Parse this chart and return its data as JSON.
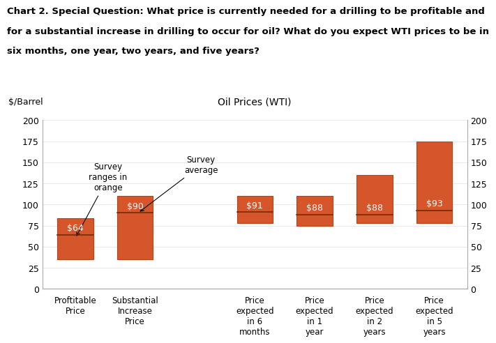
{
  "title_line1": "Chart 2. Special Question: What price is currently needed for a drilling to be profitable and",
  "title_line2": "for a substantial increase in drilling to occur for oil? What do you expect WTI prices to be in",
  "title_line3": "six months, one year, two years, and five years?",
  "center_title": "Oil Prices (WTI)",
  "ylabel_left": "$/Barrel",
  "ylim": [
    0,
    200
  ],
  "yticks": [
    0,
    25,
    50,
    75,
    100,
    125,
    150,
    175,
    200
  ],
  "bar_color": "#D4562A",
  "avg_line_color": "#7B2800",
  "categories": [
    "Proftitable\nPrice",
    "Substantial\nIncrease\nPrice",
    "",
    "Price\nexpected\nin 6\nmonths",
    "Price\nexpected\nin 1\nyear",
    "Price\nexpected\nin 2\nyears",
    "Price\nexpected\nin 5\nyears"
  ],
  "bar_bottom": [
    35,
    35,
    0,
    78,
    75,
    78,
    78
  ],
  "bar_top": [
    84,
    110,
    0,
    110,
    110,
    135,
    175
  ],
  "avg_values": [
    64,
    90,
    0,
    91,
    88,
    88,
    93
  ],
  "avg_labels": [
    "$64",
    "$90",
    "",
    "$91",
    "$88",
    "$88",
    "$93"
  ],
  "annotation_ranges": "Survey\nranges in\norange",
  "annotation_avg": "Survey\naverage",
  "bg_color": "#ffffff",
  "title_fontsize": 9.5,
  "axis_fontsize": 9,
  "label_fontsize": 8.5,
  "avg_label_fontsize": 9
}
